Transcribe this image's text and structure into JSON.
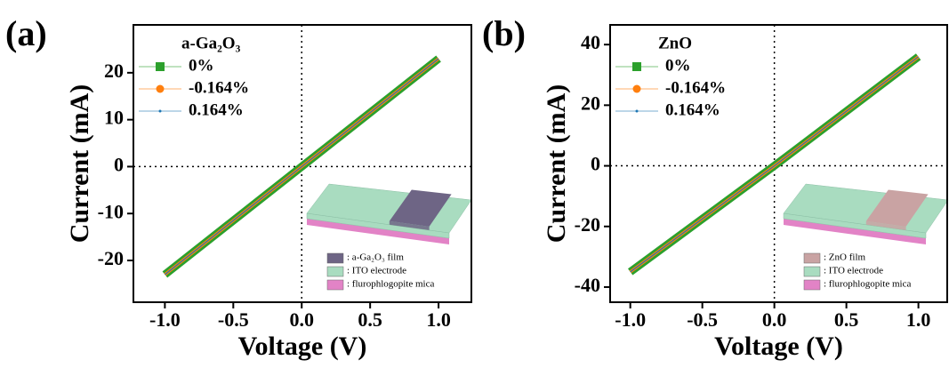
{
  "chart_data": [
    {
      "type": "line",
      "panel_label": "(a)",
      "x_label": "Voltage (V)",
      "y_label": "Current (mA)",
      "legend_title": "a-Ga₂O₃",
      "x": [
        -1,
        0,
        1
      ],
      "series": [
        {
          "name": "0%",
          "color": "#2ca02c",
          "marker": "square",
          "values": [
            -23,
            0,
            23
          ]
        },
        {
          "name": "-0.164%",
          "color": "#ff7f0e",
          "marker": "circle",
          "values": [
            -23,
            0,
            23
          ]
        },
        {
          "name": "0.164%",
          "color": "#1f77b4",
          "marker": "dot",
          "values": [
            -23,
            0,
            23
          ]
        }
      ],
      "xlim": [
        -1.23,
        1.24
      ],
      "ylim": [
        -28.9,
        30.2
      ],
      "xticks": [
        {
          "value": -1,
          "label": "-1.0"
        },
        -0.5,
        {
          "value": 0,
          "label": "0.0"
        },
        0.5,
        {
          "value": 1,
          "label": "1.0"
        }
      ],
      "yticks": [
        -20,
        -10,
        0,
        10,
        20
      ],
      "zero_lines": true,
      "legend_position": "upper left",
      "inset": [
        {
          "label": ": a-Ga₂O₃ film",
          "color": "#6e6585"
        },
        {
          "label": ": ITO electrode",
          "color": "#a9dcc0"
        },
        {
          "label": ": flurophlogopite mica",
          "color": "#e283c6"
        }
      ]
    },
    {
      "type": "line",
      "panel_label": "(b)",
      "x_label": "Voltage (V)",
      "y_label": "Current (mA)",
      "legend_title": "ZnO",
      "x": [
        -1,
        0,
        1
      ],
      "series": [
        {
          "name": "0%",
          "color": "#2ca02c",
          "marker": "square",
          "values": [
            -35,
            0,
            36
          ]
        },
        {
          "name": "-0.164%",
          "color": "#ff7f0e",
          "marker": "circle",
          "values": [
            -35,
            0,
            36
          ]
        },
        {
          "name": "0.164%",
          "color": "#1f77b4",
          "marker": "dot",
          "values": [
            -35,
            0,
            36
          ]
        }
      ],
      "xlim": [
        -1.14,
        1.2
      ],
      "ylim": [
        -45,
        46.5
      ],
      "xticks": [
        {
          "value": -1,
          "label": "-1.0"
        },
        -0.5,
        {
          "value": 0,
          "label": "0.0"
        },
        0.5,
        {
          "value": 1,
          "label": "1.0"
        }
      ],
      "yticks": [
        -40,
        -20,
        0,
        20,
        40
      ],
      "zero_lines": true,
      "legend_position": "upper left",
      "inset": [
        {
          "label": ": ZnO film",
          "color": "#c9a3a3"
        },
        {
          "label": ": ITO electrode",
          "color": "#a9dcc0"
        },
        {
          "label": ": flurophlogopite mica",
          "color": "#e283c6"
        }
      ]
    }
  ]
}
